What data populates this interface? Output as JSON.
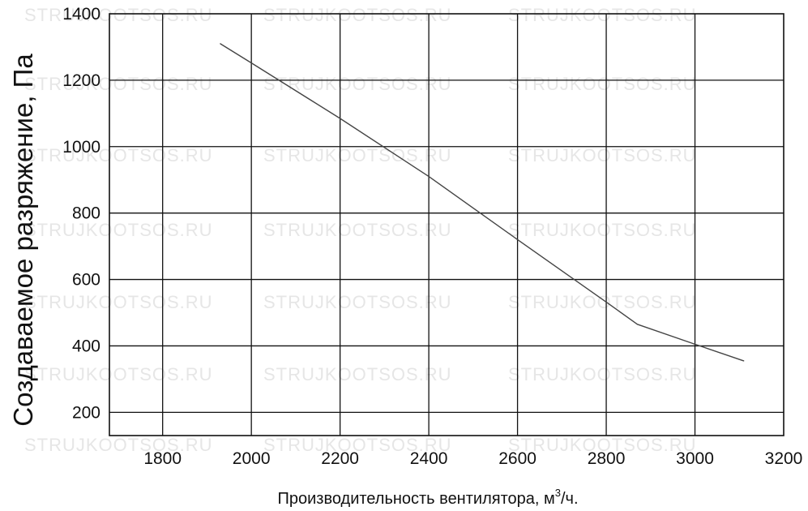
{
  "watermark": "STRUJKOOTSOS.RU",
  "chart_data": {
    "type": "line",
    "title": "",
    "xlabel": "Производительность вентилятора, м",
    "xlabel_sup": "3",
    "xlabel_suffix": "/ч.",
    "ylabel": "Создаваемое разряжение, Па",
    "xlim": [
      1680,
      3200
    ],
    "ylim": [
      130,
      1400
    ],
    "xticks": [
      1800,
      2000,
      2200,
      2400,
      2600,
      2800,
      3000,
      3200
    ],
    "yticks": [
      200,
      400,
      600,
      800,
      1000,
      1200,
      1400
    ],
    "grid": true,
    "line_color": "#444444",
    "series": [
      {
        "x": [
          1930,
          2000,
          2200,
          2400,
          2600,
          2800,
          2870,
          3000,
          3110
        ],
        "y": [
          1310,
          1252,
          1085,
          910,
          720,
          532,
          465,
          405,
          355
        ]
      }
    ]
  }
}
